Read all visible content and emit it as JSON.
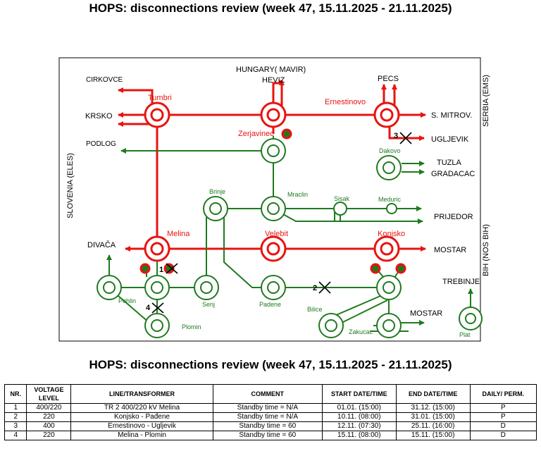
{
  "title_top": "HOPS: disconnections review (week 47, 15.11.2025 - 21.11.2025)",
  "title_table": "HOPS: disconnections review (week 47, 15.11.2025 - 21.11.2025)",
  "colors": {
    "red": "#e8130f",
    "green": "#1f7a1f",
    "black": "#000000"
  },
  "map": {
    "border_labels": {
      "hungary": "HUNGARY( MAVIR)",
      "serbia": "SERBIA (EMS)",
      "slovenia": "SLOVENIA (ELES)",
      "bih": "BIH (NOS BIH)"
    },
    "external_labels": {
      "cirkovce": "CIRKOVCE",
      "krsko": "KRSKO",
      "podlog": "PODLOG",
      "heviz": "HEVIZ",
      "pecs": "PECS",
      "smitrov": "S. MITROV.",
      "ugljevik": "UGLJEVIK",
      "tuzla": "TUZLA",
      "gradacac": "GRADACAC",
      "prijedor": "PRIJEDOR",
      "mostar1": "MOSTAR",
      "mostar2": "MOSTAR",
      "trebinje": "TREBINJE",
      "divaca": "DIVAČA"
    },
    "stations": {
      "tumbri": "Tumbri",
      "zerjavinec": "Zerjavinec",
      "ernestinovo": "Ernestinovo",
      "dakovo": "Dakovo",
      "brinje": "Brinje",
      "mraclin": "Mraclin",
      "sisak": "Sisak",
      "meduric": "Meduric",
      "melina": "Melina",
      "velebit": "Velebit",
      "konjsko": "Konjsko",
      "pehlin": "Pehlin",
      "senj": "Senj",
      "padene": "Padene",
      "bilice": "Bilice",
      "zakucac": "Zakucac",
      "plomin": "Plomin",
      "plat": "Plat"
    },
    "markers": [
      "1",
      "2",
      "3",
      "4"
    ]
  },
  "table": {
    "headers": [
      "NR.",
      "VOLTAGE LEVEL",
      "LINE/TRANSFORMER",
      "COMMENT",
      "START DATE/TIME",
      "END DATE/TIME",
      "DAILY/ PERM."
    ],
    "rows": [
      [
        "1",
        "400/220",
        "TR 2 400/220 kV Melina",
        "Standby time = N/A",
        "01.01. (15:00)",
        "31.12. (15:00)",
        "P"
      ],
      [
        "2",
        "220",
        "Konjsko - Pađene",
        "Standby time = N/A",
        "10.11. (08:00)",
        "31.01. (15:00)",
        "P"
      ],
      [
        "3",
        "400",
        "Ernestinovo - Ugljevik",
        "Standby time = 60",
        "12.11. (07:30)",
        "25.11. (16:00)",
        "D"
      ],
      [
        "4",
        "220",
        "Melina - Plomin",
        "Standby time = 60",
        "15.11. (08:00)",
        "15.11. (15:00)",
        "D"
      ]
    ]
  }
}
